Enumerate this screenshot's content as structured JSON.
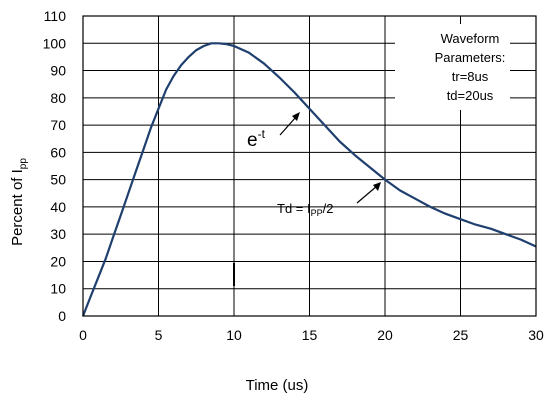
{
  "chart_data": {
    "type": "line",
    "xlabel": "Time (us)",
    "ylabel": {
      "main": "Percent of I",
      "sub": "pp"
    },
    "xlim": [
      0,
      30
    ],
    "ylim": [
      0,
      110
    ],
    "x_ticks": [
      0,
      5,
      10,
      15,
      20,
      25,
      30
    ],
    "y_ticks": [
      0,
      10,
      20,
      30,
      40,
      50,
      60,
      70,
      80,
      90,
      100,
      110
    ],
    "grid": "horizontal-and-vertical",
    "line_color": "#1f3f6e",
    "series": [
      {
        "x": [
          0,
          0.5,
          1,
          1.5,
          2,
          2.5,
          3,
          3.5,
          4,
          4.5,
          5,
          5.5,
          6,
          6.5,
          7,
          7.5,
          8,
          8.5,
          9,
          9.5,
          10,
          11,
          12,
          13,
          14,
          15,
          16,
          17,
          18,
          19,
          20,
          21,
          22,
          23,
          24,
          25,
          26,
          27,
          28,
          29,
          30
        ],
        "y": [
          0,
          7,
          14,
          21,
          29,
          37,
          45,
          53,
          61,
          69,
          76,
          83,
          88,
          92,
          95,
          97.5,
          99,
          100,
          100,
          99.7,
          99,
          96.5,
          92.5,
          87.5,
          82,
          76,
          70,
          64,
          59,
          54.5,
          50,
          46,
          43,
          40,
          37.5,
          35.5,
          33.5,
          32,
          30,
          28,
          25.5
        ]
      }
    ],
    "annotations": {
      "exp_label": {
        "base": "e",
        "sup": "-t",
        "points_to": [
          14,
          80
        ]
      },
      "td_label": {
        "main": "Td = I",
        "sub": "PP",
        "suffix": "/2",
        "points_to": [
          20,
          50
        ]
      },
      "legend_box": {
        "lines": [
          "Waveform",
          "Parameters:",
          "tr=8us",
          "td=20us"
        ],
        "placement": "top-right"
      }
    }
  }
}
